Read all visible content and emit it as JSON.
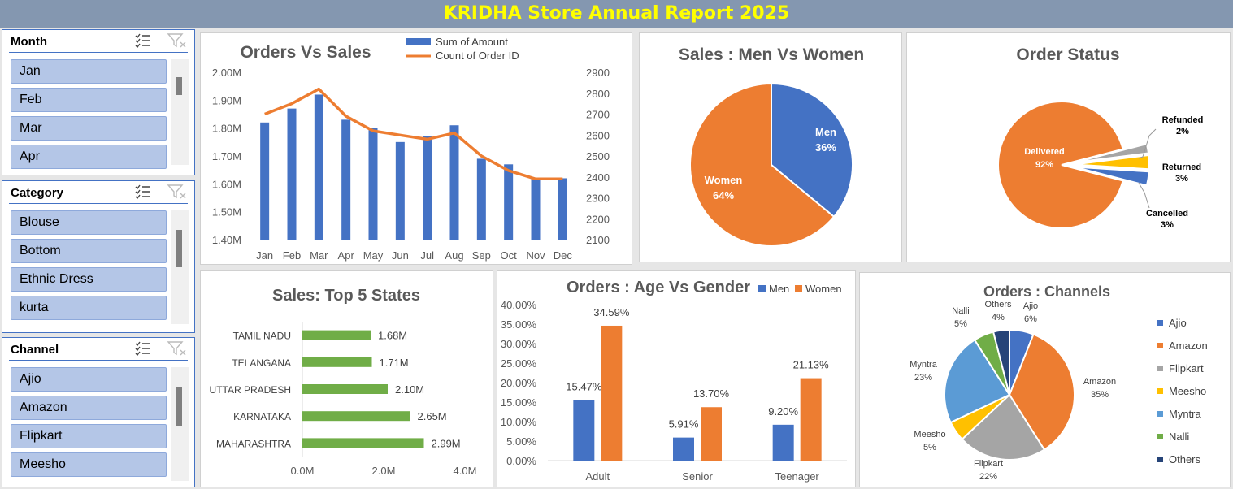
{
  "header": {
    "title": "KRIDHA Store Annual Report 2025"
  },
  "slicers": [
    {
      "title": "Month",
      "items": [
        "Jan",
        "Feb",
        "Mar",
        "Apr"
      ]
    },
    {
      "title": "Category",
      "items": [
        "Blouse",
        "Bottom",
        "Ethnic Dress",
        "kurta"
      ]
    },
    {
      "title": "Channel",
      "items": [
        "Ajio",
        "Amazon",
        "Flipkart",
        "Meesho"
      ]
    }
  ],
  "icons": {
    "multi_select": "multi-select-icon",
    "clear_filter": "clear-filter-icon"
  },
  "colors": {
    "blue": "#4472c4",
    "orange": "#ed7d31",
    "gray": "#a5a5a5",
    "yellow": "#ffc000",
    "lightblue": "#5b9bd5",
    "green": "#70ad47",
    "navy": "#264478",
    "banner": "#8497b0",
    "title_text": "#ffff00"
  },
  "chart_data": [
    {
      "type": "bar+line",
      "title": "Orders Vs Sales",
      "categories": [
        "Jan",
        "Feb",
        "Mar",
        "Apr",
        "May",
        "Jun",
        "Jul",
        "Aug",
        "Sep",
        "Oct",
        "Nov",
        "Dec"
      ],
      "series": [
        {
          "name": "Sum of Amount",
          "type": "bar",
          "axis": "left",
          "values": [
            1.82,
            1.87,
            1.92,
            1.83,
            1.8,
            1.75,
            1.77,
            1.81,
            1.69,
            1.67,
            1.62,
            1.62
          ]
        },
        {
          "name": "Count of Order ID",
          "type": "line",
          "axis": "right",
          "values": [
            2700,
            2750,
            2820,
            2690,
            2620,
            2600,
            2580,
            2610,
            2500,
            2430,
            2390,
            2390
          ]
        }
      ],
      "y_left": {
        "min": 1.4,
        "max": 2.0,
        "ticks": [
          "1.40M",
          "1.50M",
          "1.60M",
          "1.70M",
          "1.80M",
          "1.90M",
          "2.00M"
        ]
      },
      "y_right": {
        "min": 2100,
        "max": 2900,
        "ticks": [
          "2100",
          "2200",
          "2300",
          "2400",
          "2500",
          "2600",
          "2700",
          "2800",
          "2900"
        ]
      },
      "legend": "top"
    },
    {
      "type": "pie",
      "title": "Sales : Men Vs Women",
      "slices": [
        {
          "label": "Men",
          "value": 36,
          "display": "36%"
        },
        {
          "label": "Women",
          "value": 64,
          "display": "64%"
        }
      ]
    },
    {
      "type": "pie",
      "title": "Order Status",
      "slices": [
        {
          "label": "Delivered",
          "value": 92,
          "display": "92%"
        },
        {
          "label": "Refunded",
          "value": 2,
          "display": "2%"
        },
        {
          "label": "Returned",
          "value": 3,
          "display": "3%"
        },
        {
          "label": "Cancelled",
          "value": 3,
          "display": "3%"
        }
      ]
    },
    {
      "type": "bar",
      "orientation": "horizontal",
      "title": "Sales: Top 5 States",
      "categories": [
        "TAMIL NADU",
        "TELANGANA",
        "UTTAR PRADESH",
        "KARNATAKA",
        "MAHARASHTRA"
      ],
      "values": [
        1.68,
        1.71,
        2.1,
        2.65,
        2.99
      ],
      "labels": [
        "1.68M",
        "1.71M",
        "2.10M",
        "2.65M",
        "2.99M"
      ],
      "xlim": [
        0,
        4
      ],
      "ticks": [
        "0.0M",
        "2.0M",
        "4.0M"
      ]
    },
    {
      "type": "bar",
      "title": "Orders : Age Vs Gender",
      "categories": [
        "Adult",
        "Senior",
        "Teenager"
      ],
      "series": [
        {
          "name": "Men",
          "values": [
            15.47,
            5.91,
            9.2
          ],
          "labels": [
            "15.47%",
            "5.91%",
            "9.20%"
          ]
        },
        {
          "name": "Women",
          "values": [
            34.59,
            13.7,
            21.13
          ],
          "labels": [
            "34.59%",
            "13.70%",
            "21.13%"
          ]
        }
      ],
      "ylim": [
        0,
        40
      ],
      "ticks": [
        "0.00%",
        "5.00%",
        "10.00%",
        "15.00%",
        "20.00%",
        "25.00%",
        "30.00%",
        "35.00%",
        "40.00%"
      ],
      "legend": "top-right"
    },
    {
      "type": "pie",
      "title": "Orders : Channels",
      "slices": [
        {
          "label": "Ajio",
          "value": 6,
          "display": "6%"
        },
        {
          "label": "Amazon",
          "value": 35,
          "display": "35%"
        },
        {
          "label": "Flipkart",
          "value": 22,
          "display": "22%"
        },
        {
          "label": "Meesho",
          "value": 5,
          "display": "5%"
        },
        {
          "label": "Myntra",
          "value": 23,
          "display": "23%"
        },
        {
          "label": "Nalli",
          "value": 5,
          "display": "5%"
        },
        {
          "label": "Others",
          "value": 4,
          "display": "4%"
        }
      ],
      "legend": "right"
    }
  ]
}
